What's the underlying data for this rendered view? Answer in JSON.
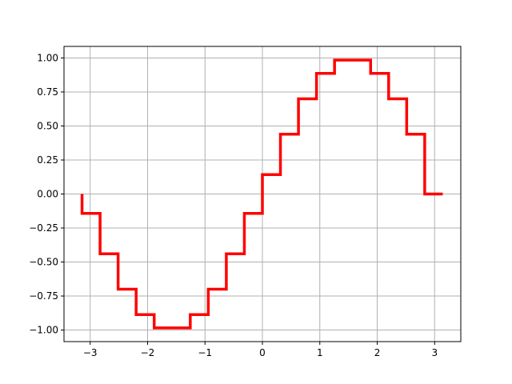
{
  "chart_data": {
    "type": "line",
    "title": "",
    "xlabel": "",
    "ylabel": "",
    "xlim": [
      -3.456,
      3.456
    ],
    "ylim": [
      -1.085,
      1.085
    ],
    "grid": true,
    "xticks": [
      -3,
      -2,
      -1,
      0,
      1,
      2,
      3
    ],
    "xtick_labels": [
      "−3",
      "−2",
      "−1",
      "0",
      "1",
      "2",
      "3"
    ],
    "yticks": [
      -1.0,
      -0.75,
      -0.5,
      -0.25,
      0.0,
      0.25,
      0.5,
      0.75,
      1.0
    ],
    "ytick_labels": [
      "−1.00",
      "−0.75",
      "−0.50",
      "−0.25",
      "0.00",
      "0.25",
      "0.50",
      "0.75",
      "1.00"
    ],
    "series": [
      {
        "step": "pre",
        "color": "#ff0000",
        "x": [
          -3.1416,
          -2.8274,
          -2.5133,
          -2.1991,
          -1.885,
          -1.5708,
          -1.2566,
          -0.9425,
          -0.6283,
          -0.3142,
          0.0,
          0.3142,
          0.6283,
          0.9425,
          1.2566,
          1.5708,
          1.885,
          2.1991,
          2.5133,
          2.8274,
          3.1416
        ],
        "y": [
          0.0,
          -0.1423,
          -0.4395,
          -0.6995,
          -0.8867,
          -0.9843,
          -0.9843,
          -0.8867,
          -0.6995,
          -0.4395,
          -0.1423,
          0.1423,
          0.4395,
          0.6995,
          0.8867,
          0.9843,
          0.9843,
          0.8867,
          0.6995,
          0.4395,
          0.0
        ]
      }
    ]
  }
}
